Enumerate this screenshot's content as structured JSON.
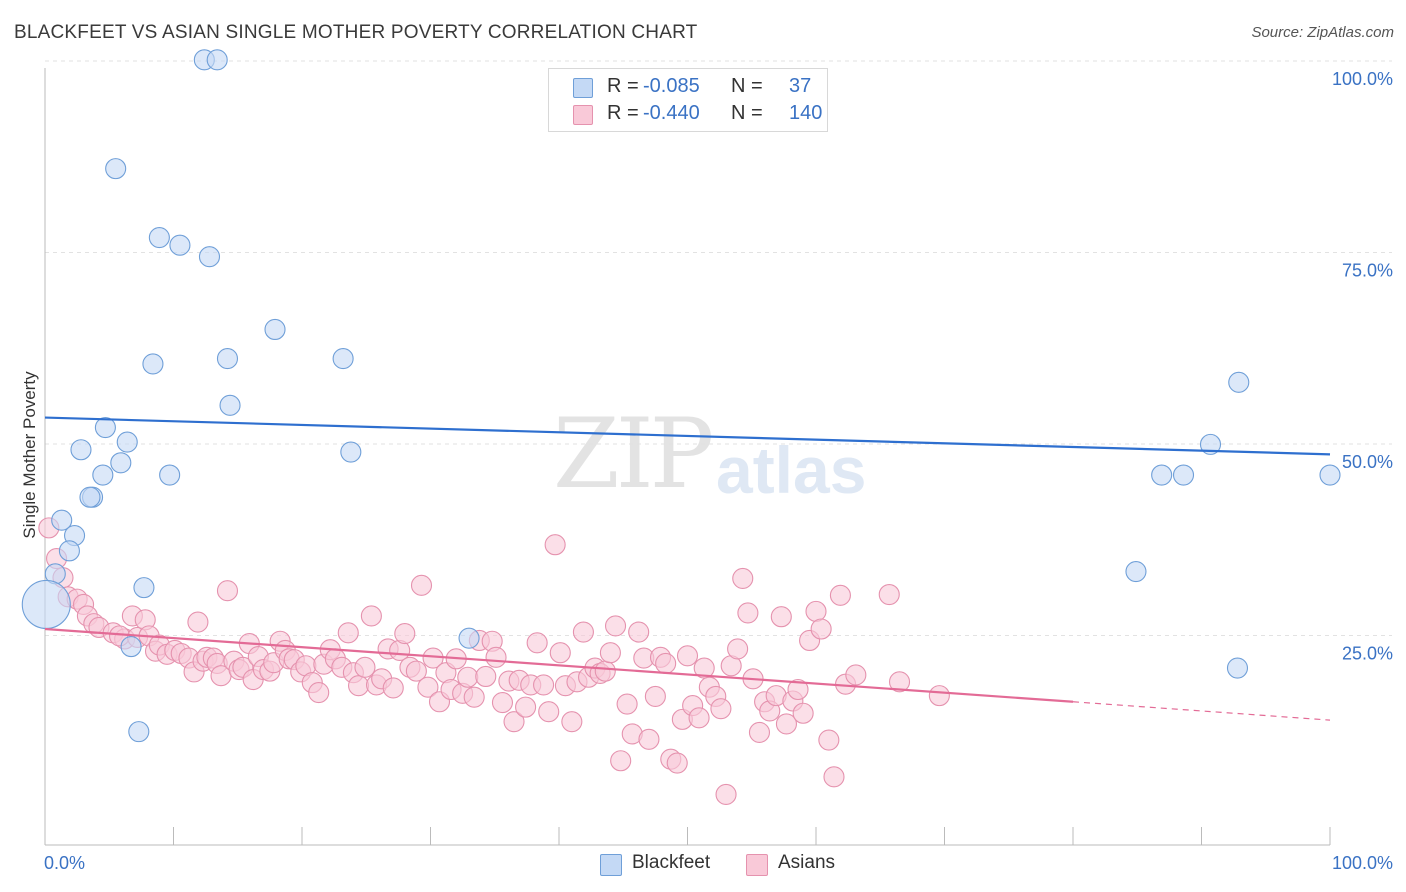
{
  "title": "BLACKFEET VS ASIAN SINGLE MOTHER POVERTY CORRELATION CHART",
  "source": "Source: ZipAtlas.com",
  "watermark": {
    "zip": "ZIP",
    "atlas": "atlas"
  },
  "legend": {
    "r_label": "R =",
    "n_label": "N =",
    "rows": [
      {
        "r": "-0.085",
        "n": "37",
        "fill": "#c4d9f5",
        "stroke": "#6f9fd8"
      },
      {
        "r": "-0.440",
        "n": "140",
        "fill": "#f9c9d8",
        "stroke": "#e592ae"
      }
    ]
  },
  "bottom_legend": [
    {
      "label": "Blackfeet",
      "fill": "#c4d9f5",
      "stroke": "#6f9fd8"
    },
    {
      "label": "Asians",
      "fill": "#f9c9d8",
      "stroke": "#e592ae"
    }
  ],
  "chart_data": {
    "type": "scatter",
    "title": "BLACKFEET VS ASIAN SINGLE MOTHER POVERTY CORRELATION CHART",
    "xlabel": "",
    "ylabel": "Single Mother Poverty",
    "xlim": [
      0,
      100
    ],
    "ylim": [
      0,
      100
    ],
    "x_tick_labels": [
      "0.0%",
      "100.0%"
    ],
    "y_tick_labels": [
      "25.0%",
      "50.0%",
      "75.0%",
      "100.0%"
    ],
    "y_ticks": [
      25,
      50,
      75,
      100
    ],
    "grid": true,
    "legend_position": "top-center",
    "series": [
      {
        "name": "Blackfeet",
        "color": "#6f9fd8",
        "fill": "#c4d9f5",
        "trend_color": "#2e6fcf",
        "trend": [
          {
            "x": 0,
            "y": 55.8
          },
          {
            "x": 100,
            "y": 51.0
          }
        ],
        "points": [
          [
            12.4,
            102.5
          ],
          [
            13.4,
            102.5
          ],
          [
            5.5,
            88.3
          ],
          [
            8.9,
            79.3
          ],
          [
            10.5,
            78.3
          ],
          [
            12.8,
            76.8
          ],
          [
            17.9,
            67.3
          ],
          [
            23.2,
            63.5
          ],
          [
            14.2,
            63.5
          ],
          [
            8.4,
            62.8
          ],
          [
            14.4,
            57.4
          ],
          [
            4.7,
            54.5
          ],
          [
            6.4,
            52.6
          ],
          [
            2.8,
            51.6
          ],
          [
            23.8,
            51.3
          ],
          [
            5.9,
            49.9
          ],
          [
            4.5,
            48.3
          ],
          [
            9.7,
            48.3
          ],
          [
            3.7,
            45.4
          ],
          [
            3.5,
            45.4
          ],
          [
            1.3,
            42.4
          ],
          [
            2.3,
            40.4
          ],
          [
            1.9,
            38.4
          ],
          [
            0.8,
            35.4
          ],
          [
            0.1,
            31.4
          ],
          [
            7.7,
            33.6
          ],
          [
            33.0,
            27.0
          ],
          [
            6.7,
            25.9
          ],
          [
            7.3,
            14.8
          ],
          [
            92.8,
            23.1
          ],
          [
            84.9,
            35.7
          ],
          [
            86.9,
            48.3
          ],
          [
            88.6,
            48.3
          ],
          [
            90.7,
            52.3
          ],
          [
            92.9,
            60.4
          ],
          [
            100.0,
            48.3
          ]
        ],
        "point_sizes": [
          10,
          10,
          10,
          10,
          10,
          10,
          10,
          10,
          10,
          10,
          10,
          10,
          10,
          10,
          10,
          10,
          10,
          10,
          10,
          10,
          10,
          10,
          10,
          10,
          24,
          10,
          10,
          10,
          10,
          10,
          10,
          10,
          10,
          10,
          10,
          10
        ]
      },
      {
        "name": "Asians",
        "color": "#e592ae",
        "fill": "#f9c9d8",
        "trend_color": "#e36b96",
        "trend": [
          {
            "x": 0,
            "y": 28.2
          },
          {
            "x": 80,
            "y": 18.7
          }
        ],
        "trend_dashed": [
          {
            "x": 80,
            "y": 18.7
          },
          {
            "x": 100,
            "y": 16.3
          }
        ],
        "points": [
          [
            0.3,
            41.4
          ],
          [
            0.9,
            37.4
          ],
          [
            1.4,
            34.9
          ],
          [
            1.8,
            32.4
          ],
          [
            2.5,
            32.1
          ],
          [
            3.0,
            31.4
          ],
          [
            3.3,
            29.9
          ],
          [
            3.8,
            28.9
          ],
          [
            4.2,
            28.4
          ],
          [
            5.3,
            27.7
          ],
          [
            6.2,
            26.9
          ],
          [
            5.8,
            27.3
          ],
          [
            6.8,
            29.9
          ],
          [
            7.2,
            27.1
          ],
          [
            7.8,
            29.4
          ],
          [
            8.1,
            27.3
          ],
          [
            8.6,
            25.3
          ],
          [
            8.9,
            26.1
          ],
          [
            9.5,
            24.9
          ],
          [
            10.1,
            25.4
          ],
          [
            10.6,
            25.0
          ],
          [
            11.2,
            24.4
          ],
          [
            11.6,
            22.6
          ],
          [
            11.9,
            29.1
          ],
          [
            12.3,
            24.0
          ],
          [
            12.6,
            24.5
          ],
          [
            13.1,
            24.4
          ],
          [
            13.4,
            23.7
          ],
          [
            13.7,
            22.1
          ],
          [
            14.2,
            33.2
          ],
          [
            14.7,
            24.0
          ],
          [
            15.1,
            22.9
          ],
          [
            15.4,
            23.2
          ],
          [
            15.9,
            26.3
          ],
          [
            16.2,
            21.6
          ],
          [
            16.6,
            24.6
          ],
          [
            17.0,
            22.9
          ],
          [
            17.5,
            22.7
          ],
          [
            17.8,
            23.8
          ],
          [
            18.3,
            26.6
          ],
          [
            18.7,
            25.4
          ],
          [
            19.0,
            24.3
          ],
          [
            19.4,
            24.2
          ],
          [
            19.9,
            22.6
          ],
          [
            20.3,
            23.4
          ],
          [
            20.8,
            21.2
          ],
          [
            21.3,
            19.9
          ],
          [
            21.7,
            23.6
          ],
          [
            22.2,
            25.5
          ],
          [
            22.6,
            24.3
          ],
          [
            23.1,
            23.2
          ],
          [
            23.6,
            27.7
          ],
          [
            24.0,
            22.5
          ],
          [
            24.4,
            20.8
          ],
          [
            24.9,
            23.2
          ],
          [
            25.4,
            29.9
          ],
          [
            25.8,
            20.9
          ],
          [
            26.2,
            21.7
          ],
          [
            26.7,
            25.6
          ],
          [
            27.1,
            20.5
          ],
          [
            27.6,
            25.4
          ],
          [
            28.0,
            27.6
          ],
          [
            28.4,
            23.2
          ],
          [
            28.9,
            22.7
          ],
          [
            29.3,
            33.9
          ],
          [
            29.8,
            20.6
          ],
          [
            30.2,
            24.4
          ],
          [
            30.7,
            18.7
          ],
          [
            31.2,
            22.5
          ],
          [
            31.6,
            20.3
          ],
          [
            32.0,
            24.3
          ],
          [
            32.5,
            19.8
          ],
          [
            32.9,
            21.9
          ],
          [
            33.4,
            19.3
          ],
          [
            33.8,
            26.7
          ],
          [
            34.3,
            22.0
          ],
          [
            34.8,
            26.6
          ],
          [
            35.1,
            24.5
          ],
          [
            35.6,
            18.6
          ],
          [
            36.1,
            21.4
          ],
          [
            36.5,
            16.1
          ],
          [
            36.9,
            21.5
          ],
          [
            37.4,
            18.0
          ],
          [
            37.8,
            20.9
          ],
          [
            38.3,
            26.4
          ],
          [
            38.8,
            20.9
          ],
          [
            39.2,
            17.4
          ],
          [
            39.7,
            39.2
          ],
          [
            40.1,
            25.1
          ],
          [
            40.5,
            20.8
          ],
          [
            41.0,
            16.1
          ],
          [
            41.4,
            21.3
          ],
          [
            41.9,
            27.8
          ],
          [
            42.3,
            21.9
          ],
          [
            42.8,
            23.1
          ],
          [
            43.2,
            22.4
          ],
          [
            43.6,
            22.7
          ],
          [
            44.0,
            25.1
          ],
          [
            44.4,
            28.6
          ],
          [
            44.8,
            11.0
          ],
          [
            45.3,
            18.4
          ],
          [
            45.7,
            14.5
          ],
          [
            46.2,
            27.8
          ],
          [
            46.6,
            24.4
          ],
          [
            47.0,
            13.8
          ],
          [
            47.5,
            19.4
          ],
          [
            47.9,
            24.5
          ],
          [
            48.3,
            23.7
          ],
          [
            48.7,
            11.2
          ],
          [
            49.2,
            10.7
          ],
          [
            49.6,
            16.4
          ],
          [
            50.0,
            24.7
          ],
          [
            50.4,
            18.2
          ],
          [
            50.9,
            16.6
          ],
          [
            51.3,
            23.1
          ],
          [
            51.7,
            20.6
          ],
          [
            52.2,
            19.4
          ],
          [
            52.6,
            17.8
          ],
          [
            53.0,
            6.6
          ],
          [
            53.4,
            23.4
          ],
          [
            53.9,
            25.6
          ],
          [
            54.3,
            34.8
          ],
          [
            54.7,
            30.3
          ],
          [
            55.1,
            21.7
          ],
          [
            55.6,
            14.7
          ],
          [
            56.0,
            18.7
          ],
          [
            56.4,
            17.5
          ],
          [
            56.9,
            19.5
          ],
          [
            57.3,
            29.8
          ],
          [
            57.7,
            15.8
          ],
          [
            58.2,
            18.8
          ],
          [
            58.6,
            20.3
          ],
          [
            59.0,
            17.2
          ],
          [
            59.5,
            26.7
          ],
          [
            60.0,
            30.5
          ],
          [
            60.4,
            28.2
          ],
          [
            61.0,
            13.7
          ],
          [
            61.4,
            8.9
          ],
          [
            61.9,
            32.6
          ],
          [
            62.3,
            21.0
          ],
          [
            63.1,
            22.2
          ],
          [
            65.7,
            32.7
          ],
          [
            66.5,
            21.3
          ],
          [
            69.6,
            19.5
          ]
        ]
      }
    ]
  }
}
